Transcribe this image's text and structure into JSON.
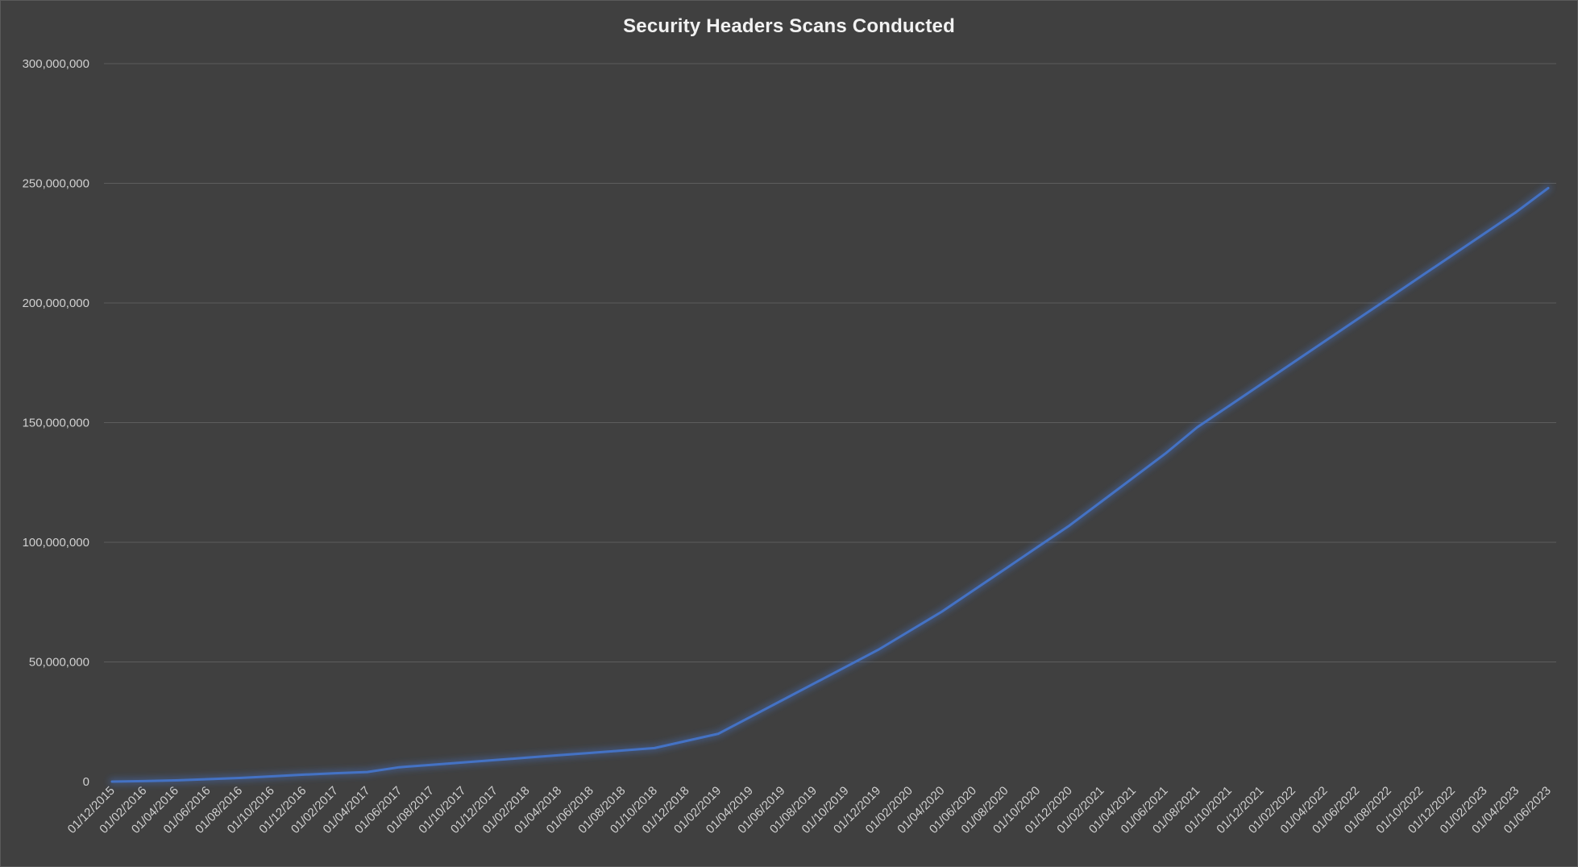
{
  "chart_data": {
    "type": "line",
    "title": "Security Headers Scans Conducted",
    "xlabel": "",
    "ylabel": "",
    "ylim": [
      0,
      300000000
    ],
    "yticks": [
      0,
      50000000,
      100000000,
      150000000,
      200000000,
      250000000,
      300000000
    ],
    "ytick_labels": [
      "0",
      "50,000,000",
      "100,000,000",
      "150,000,000",
      "200,000,000",
      "250,000,000",
      "300,000,000"
    ],
    "grid": true,
    "legend": "none",
    "line_color": "#4472c4",
    "categories": [
      "01/12/2015",
      "01/02/2016",
      "01/04/2016",
      "01/06/2016",
      "01/08/2016",
      "01/10/2016",
      "01/12/2016",
      "01/02/2017",
      "01/04/2017",
      "01/06/2017",
      "01/08/2017",
      "01/10/2017",
      "01/12/2017",
      "01/02/2018",
      "01/04/2018",
      "01/06/2018",
      "01/08/2018",
      "01/10/2018",
      "01/12/2018",
      "01/02/2019",
      "01/04/2019",
      "01/06/2019",
      "01/08/2019",
      "01/10/2019",
      "01/12/2019",
      "01/02/2020",
      "01/04/2020",
      "01/06/2020",
      "01/08/2020",
      "01/10/2020",
      "01/12/2020",
      "01/02/2021",
      "01/04/2021",
      "01/06/2021",
      "01/08/2021",
      "01/10/2021",
      "01/12/2021",
      "01/02/2022",
      "01/04/2022",
      "01/06/2022",
      "01/08/2022",
      "01/10/2022",
      "01/12/2022",
      "01/02/2023",
      "01/04/2023",
      "01/06/2023"
    ],
    "series": [
      {
        "values": [
          0,
          200000,
          500000,
          1000000,
          1500000,
          2200000,
          2900000,
          3500000,
          4000000,
          6000000,
          7000000,
          8000000,
          9000000,
          10000000,
          11000000,
          12000000,
          13000000,
          14000000,
          17000000,
          20000000,
          27000000,
          34000000,
          41000000,
          48000000,
          55000000,
          63000000,
          71000000,
          80000000,
          89000000,
          98000000,
          107000000,
          117000000,
          127000000,
          137000000,
          148000000,
          157000000,
          166000000,
          175000000,
          184000000,
          193000000,
          202000000,
          211000000,
          220000000,
          229000000,
          238000000,
          248000000
        ]
      }
    ]
  }
}
